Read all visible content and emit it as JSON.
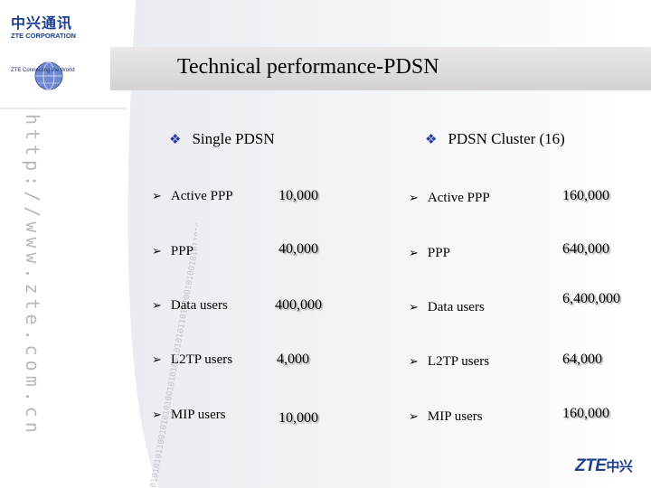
{
  "brand": {
    "name_cn": "中兴通讯",
    "name_en": "ZTE CORPORATION",
    "tagline": "ZTE Connecting the World",
    "footer_logo_en": "ZTE",
    "footer_logo_cn": "中兴",
    "color": "#1c3f8f"
  },
  "decor": {
    "vertical_url": "http://www.zte.com.cn",
    "binary_text": "01010101100101010100101010010101011010100101001010110101"
  },
  "title": "Technical performance-PDSN",
  "columns": [
    {
      "heading": "Single PDSN",
      "rows": [
        {
          "label": "Active PPP",
          "value": "10,000"
        },
        {
          "label": "PPP",
          "value": "40,000"
        },
        {
          "label": "Data users",
          "value": "400,000"
        },
        {
          "label": "L2TP  users",
          "value": "4,000"
        },
        {
          "label": "MIP users",
          "value": "10,000"
        }
      ]
    },
    {
      "heading": "PDSN Cluster (16)",
      "rows": [
        {
          "label": "Active PPP",
          "value": "160,000"
        },
        {
          "label": "PPP",
          "value": "640,000"
        },
        {
          "label": "Data users",
          "value": "6,400,000"
        },
        {
          "label": "L2TP  users",
          "value": "64,000"
        },
        {
          "label": "MIP users",
          "value": "160,000"
        }
      ]
    }
  ],
  "icons": {
    "heading_bullet": "diamond-bullet-icon",
    "row_bullet": "arrow-bullet-icon"
  }
}
